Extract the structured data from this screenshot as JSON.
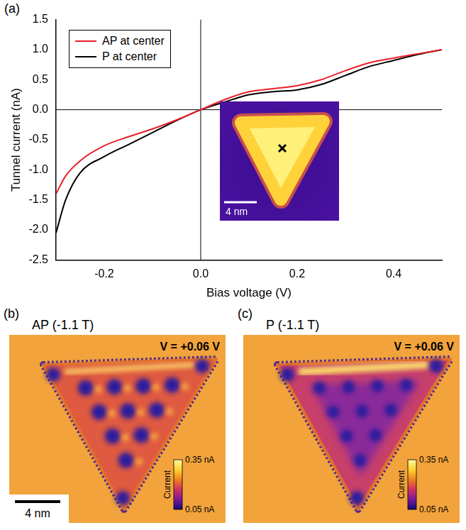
{
  "chart_data": {
    "type": "line",
    "panel_label": "(a)",
    "x_label": "Bias voltage (V)",
    "y_label": "Tunnel current (nA)",
    "xlim": [
      -0.3,
      0.5
    ],
    "xticks": [
      -0.2,
      {
        "value": 0,
        "label": "0.0"
      },
      0.2,
      0.4
    ],
    "ylim": [
      -2.5,
      1.5
    ],
    "yticks": [
      -2.5,
      {
        "value": -2,
        "label": "-2.0"
      },
      -1.5,
      {
        "value": -1,
        "label": "-1.0"
      },
      -0.5,
      {
        "value": 0,
        "label": "0.0"
      },
      0.5,
      {
        "value": 1,
        "label": "1.0"
      },
      1.5
    ],
    "grid": false,
    "legend": "upper left",
    "x": [
      -0.3,
      -0.28,
      -0.25,
      -0.2,
      -0.15,
      -0.1,
      -0.05,
      0,
      0.05,
      0.1,
      0.15,
      0.2,
      0.25,
      0.3,
      0.35,
      0.4,
      0.45,
      0.5
    ],
    "series": [
      {
        "name": "AP at center",
        "color": "#e8202a",
        "values": [
          -1.4,
          -1.1,
          -0.85,
          -0.6,
          -0.45,
          -0.32,
          -0.17,
          0,
          0.17,
          0.3,
          0.35,
          0.4,
          0.5,
          0.65,
          0.78,
          0.86,
          0.93,
          1.0
        ]
      },
      {
        "name": "P at center",
        "color": "#000000",
        "values": [
          -2.05,
          -1.5,
          -1.05,
          -0.78,
          -0.58,
          -0.38,
          -0.18,
          0,
          0.13,
          0.25,
          0.3,
          0.33,
          0.42,
          0.57,
          0.72,
          0.82,
          0.92,
          1.0
        ]
      }
    ]
  },
  "inset": {
    "scale_bar": "4 nm"
  },
  "maps": [
    {
      "panel_label": "(b)",
      "title": "AP (-1.1 T)",
      "annotation": "V = +0.06 V",
      "scale_bar": "4 nm",
      "colorbar": {
        "title": "Current",
        "range": [
          0.05,
          0.35
        ],
        "ticks": [
          {
            "value": 0.35,
            "label": "0.35 nA"
          },
          {
            "value": 0.05,
            "label": "0.05 nA"
          }
        ]
      }
    },
    {
      "panel_label": "(c)",
      "title": "P (-1.1 T)",
      "annotation": "V = +0.06 V",
      "colorbar": {
        "title": "Current",
        "range": [
          0.05,
          0.35
        ],
        "ticks": [
          {
            "value": 0.35,
            "label": "0.35 nA"
          },
          {
            "value": 0.05,
            "label": "0.05 nA"
          }
        ]
      }
    }
  ]
}
